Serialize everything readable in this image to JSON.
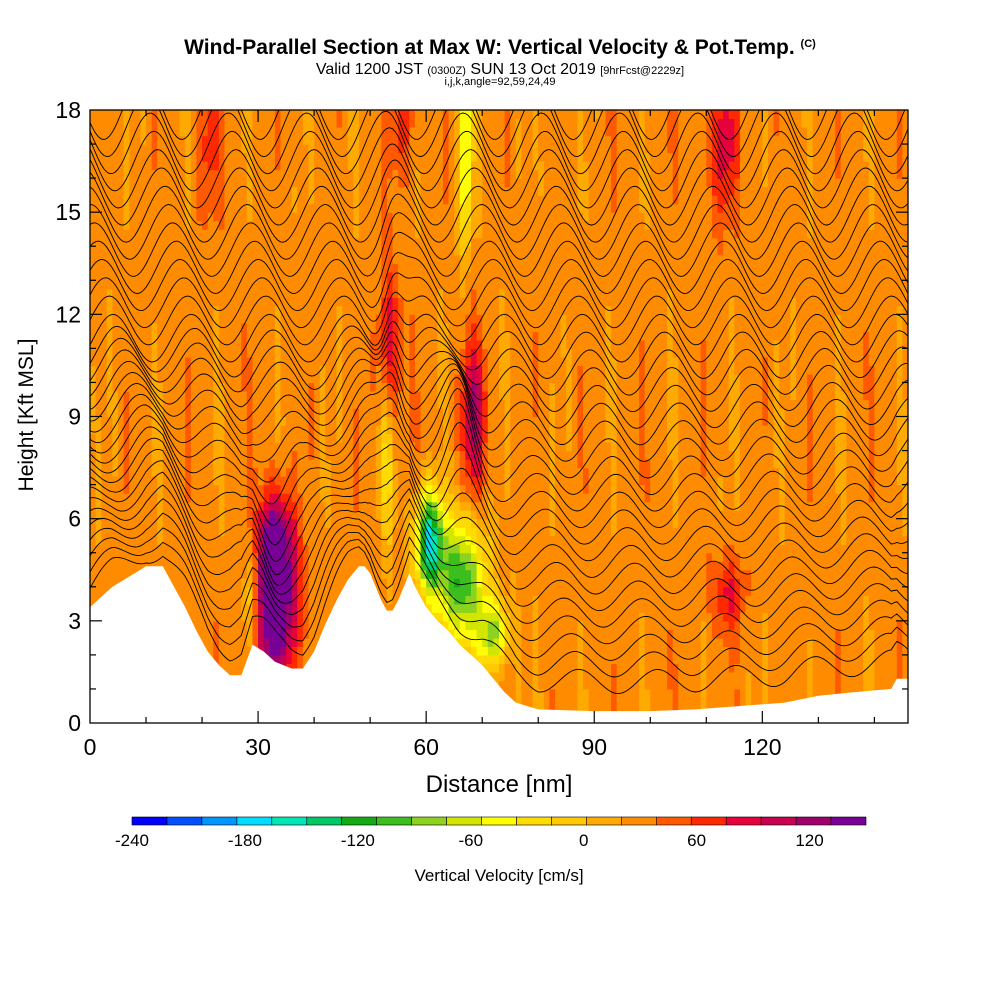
{
  "chart_data": {
    "type": "heatmap",
    "title_main": "Wind-Parallel Section at Max W: Vertical Velocity & Pot.Temp.",
    "title_mark": "(C)",
    "subtitle_a": "Valid 1200 JST",
    "subtitle_b": "(0300Z)",
    "subtitle_c": "SUN 13 Oct 2019",
    "subtitle_d": "[9hrFcst@2229z]",
    "subtitle2": "i,j,k,angle=92,59,24,49",
    "xlabel": "Distance [nm]",
    "ylabel": "Height [Kft MSL]",
    "xlim": [
      0,
      146
    ],
    "ylim": [
      0,
      18
    ],
    "x_ticks": [
      0,
      30,
      60,
      90,
      120
    ],
    "y_ticks": [
      0,
      3,
      6,
      9,
      12,
      15,
      18
    ],
    "colorbar": {
      "label": "Vertical Velocity [cm/s]",
      "min": -240,
      "max": 150,
      "tick_labels": [
        "-240",
        "-180",
        "-120",
        "-60",
        "0",
        "60",
        "120"
      ],
      "tick_values": [
        -240,
        -180,
        -120,
        -60,
        0,
        60,
        120
      ],
      "colors": [
        "#0000ff",
        "#0050ff",
        "#0096ff",
        "#00dcff",
        "#00e6b4",
        "#00c864",
        "#14aa14",
        "#3cbe1e",
        "#8cd21e",
        "#d2e600",
        "#ffff00",
        "#ffdc00",
        "#ffc800",
        "#ffaa00",
        "#ff8c00",
        "#ff5a00",
        "#ff2800",
        "#e6003c",
        "#c80050",
        "#a0006e",
        "#780096"
      ]
    },
    "terrain": [
      [
        0,
        3.4
      ],
      [
        2,
        3.7
      ],
      [
        4,
        4.0
      ],
      [
        6,
        4.2
      ],
      [
        8,
        4.4
      ],
      [
        10,
        4.6
      ],
      [
        13,
        4.6
      ],
      [
        15,
        4.0
      ],
      [
        17,
        3.4
      ],
      [
        19,
        2.7
      ],
      [
        21,
        2.1
      ],
      [
        23,
        1.7
      ],
      [
        25,
        1.4
      ],
      [
        27,
        1.4
      ],
      [
        29,
        2.3
      ],
      [
        31,
        2.1
      ],
      [
        33,
        1.8
      ],
      [
        36,
        1.6
      ],
      [
        38,
        1.6
      ],
      [
        40,
        2.1
      ],
      [
        42,
        2.9
      ],
      [
        44,
        3.6
      ],
      [
        46,
        4.2
      ],
      [
        48,
        4.6
      ],
      [
        49,
        4.6
      ],
      [
        50,
        4.4
      ],
      [
        51,
        4.0
      ],
      [
        52,
        3.6
      ],
      [
        53,
        3.3
      ],
      [
        54,
        3.3
      ],
      [
        55,
        3.6
      ],
      [
        56,
        4.0
      ],
      [
        57,
        4.4
      ],
      [
        58,
        4.0
      ],
      [
        60,
        3.4
      ],
      [
        62,
        3.0
      ],
      [
        64,
        2.7
      ],
      [
        66,
        2.3
      ],
      [
        68,
        2.0
      ],
      [
        70,
        1.7
      ],
      [
        72,
        1.3
      ],
      [
        74,
        0.9
      ],
      [
        76,
        0.6
      ],
      [
        78,
        0.5
      ],
      [
        80,
        0.4
      ],
      [
        90,
        0.35
      ],
      [
        100,
        0.35
      ],
      [
        108,
        0.4
      ],
      [
        116,
        0.5
      ],
      [
        124,
        0.6
      ],
      [
        130,
        0.8
      ],
      [
        136,
        0.9
      ],
      [
        143,
        1.0
      ],
      [
        144,
        1.3
      ],
      [
        146,
        1.3
      ]
    ],
    "w_cells": [
      {
        "x": 33,
        "y": 3.5,
        "sx": 2.8,
        "sy": 1.6,
        "w": 150
      },
      {
        "x": 33,
        "y": 5.4,
        "sx": 2.0,
        "sy": 1.0,
        "w": 90
      },
      {
        "x": 53.5,
        "y": 11.0,
        "sx": 1.4,
        "sy": 1.6,
        "w": 70
      },
      {
        "x": 68.5,
        "y": 9.0,
        "sx": 1.5,
        "sy": 1.6,
        "w": 85
      },
      {
        "x": 114,
        "y": 3.8,
        "sx": 2.0,
        "sy": 0.8,
        "w": 50
      },
      {
        "x": 113,
        "y": 17.0,
        "sx": 2.0,
        "sy": 1.5,
        "w": 55
      },
      {
        "x": 56,
        "y": 17.8,
        "sx": 1.5,
        "sy": 1.2,
        "w": 40
      },
      {
        "x": 21,
        "y": 17.0,
        "sx": 1.5,
        "sy": 1.5,
        "w": 35
      },
      {
        "x": 29,
        "y": 3.8,
        "sx": 1.0,
        "sy": 1.2,
        "w": -75
      },
      {
        "x": 60.5,
        "y": 5.4,
        "sx": 1.6,
        "sy": 1.0,
        "w": -180
      },
      {
        "x": 66,
        "y": 4.2,
        "sx": 3.2,
        "sy": 1.3,
        "w": -140
      },
      {
        "x": 72,
        "y": 2.6,
        "sx": 2.0,
        "sy": 0.7,
        "w": -100
      },
      {
        "x": 53,
        "y": 7.8,
        "sx": 1.0,
        "sy": 2.0,
        "w": -50
      },
      {
        "x": 67,
        "y": 16.8,
        "sx": 0.8,
        "sy": 2.0,
        "w": -95
      }
    ]
  }
}
